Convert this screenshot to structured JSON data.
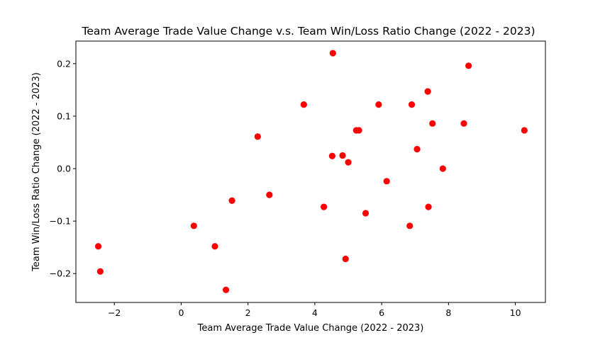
{
  "chart_data": {
    "type": "scatter",
    "title": "Team Average Trade Value Change v.s. Team Win/Loss Ratio Change (2022 - 2023)",
    "xlabel": "Team Average Trade Value Change (2022 - 2023)",
    "ylabel": "Team Win/Loss Ratio Change (2022 - 2023)",
    "xlim": [
      -3.15,
      10.9
    ],
    "ylim": [
      -0.255,
      0.243
    ],
    "xticks": [
      -2,
      0,
      2,
      4,
      6,
      8,
      10
    ],
    "xtick_labels": [
      "−2",
      "0",
      "2",
      "4",
      "6",
      "8",
      "10"
    ],
    "yticks": [
      -0.2,
      -0.1,
      0.0,
      0.1,
      0.2
    ],
    "ytick_labels": [
      "−0.2",
      "−0.1",
      "0.0",
      "0.1",
      "0.2"
    ],
    "grid": false,
    "marker_color": "#ff0000",
    "points": [
      {
        "x": -2.48,
        "y": -0.148
      },
      {
        "x": -2.42,
        "y": -0.196
      },
      {
        "x": 0.38,
        "y": -0.109
      },
      {
        "x": 1.01,
        "y": -0.148
      },
      {
        "x": 1.34,
        "y": -0.231
      },
      {
        "x": 1.52,
        "y": -0.061
      },
      {
        "x": 2.29,
        "y": 0.061
      },
      {
        "x": 2.64,
        "y": -0.05
      },
      {
        "x": 3.67,
        "y": 0.122
      },
      {
        "x": 4.27,
        "y": -0.073
      },
      {
        "x": 4.52,
        "y": 0.024
      },
      {
        "x": 4.54,
        "y": 0.22
      },
      {
        "x": 4.83,
        "y": 0.025
      },
      {
        "x": 4.92,
        "y": -0.172
      },
      {
        "x": 5.0,
        "y": 0.012
      },
      {
        "x": 5.24,
        "y": 0.073
      },
      {
        "x": 5.32,
        "y": 0.073
      },
      {
        "x": 5.52,
        "y": -0.085
      },
      {
        "x": 5.91,
        "y": 0.122
      },
      {
        "x": 6.15,
        "y": -0.024
      },
      {
        "x": 6.84,
        "y": -0.109
      },
      {
        "x": 6.9,
        "y": 0.122
      },
      {
        "x": 7.06,
        "y": 0.037
      },
      {
        "x": 7.38,
        "y": 0.147
      },
      {
        "x": 7.4,
        "y": -0.073
      },
      {
        "x": 7.52,
        "y": 0.086
      },
      {
        "x": 7.83,
        "y": 0.0
      },
      {
        "x": 8.46,
        "y": 0.086
      },
      {
        "x": 8.6,
        "y": 0.196
      },
      {
        "x": 10.27,
        "y": 0.073
      }
    ]
  }
}
